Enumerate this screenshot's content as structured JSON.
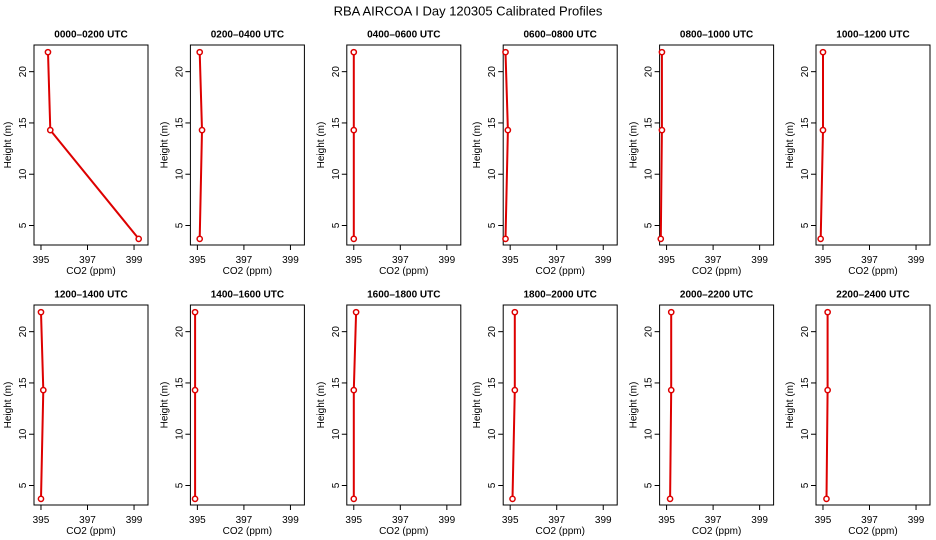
{
  "title": "RBA AIRCOA I  Day 120305  Calibrated Profiles",
  "chart_data": [
    {
      "type": "line",
      "title": "0000–0200 UTC",
      "xlabel": "CO2 (ppm)",
      "ylabel": "Height (m)",
      "x": [
        399.2,
        395.4,
        395.3
      ],
      "values": [
        3.7,
        14.3,
        21.9
      ],
      "color": "#dd0000",
      "xlim": [
        394.7,
        399.6
      ],
      "ylim": [
        3.1,
        22.6
      ],
      "xticks": [
        395,
        397,
        399
      ],
      "yticks": [
        5,
        10,
        15,
        20
      ]
    },
    {
      "type": "line",
      "title": "0200–0400 UTC",
      "xlabel": "CO2 (ppm)",
      "ylabel": "Height (m)",
      "x": [
        395.1,
        395.2,
        395.1
      ],
      "values": [
        3.7,
        14.3,
        21.9
      ],
      "color": "#dd0000",
      "xlim": [
        394.7,
        399.6
      ],
      "ylim": [
        3.1,
        22.6
      ],
      "xticks": [
        395,
        397,
        399
      ],
      "yticks": [
        5,
        10,
        15,
        20
      ]
    },
    {
      "type": "line",
      "title": "0400–0600 UTC",
      "xlabel": "CO2 (ppm)",
      "ylabel": "Height (m)",
      "x": [
        395.0,
        395.0,
        395.0
      ],
      "values": [
        3.7,
        14.3,
        21.9
      ],
      "color": "#dd0000",
      "xlim": [
        394.7,
        399.6
      ],
      "ylim": [
        3.1,
        22.6
      ],
      "xticks": [
        395,
        397,
        399
      ],
      "yticks": [
        5,
        10,
        15,
        20
      ]
    },
    {
      "type": "line",
      "title": "0600–0800 UTC",
      "xlabel": "CO2 (ppm)",
      "ylabel": "Height (m)",
      "x": [
        394.8,
        394.9,
        394.8
      ],
      "values": [
        3.7,
        14.3,
        21.9
      ],
      "color": "#dd0000",
      "xlim": [
        394.7,
        399.6
      ],
      "ylim": [
        3.1,
        22.6
      ],
      "xticks": [
        395,
        397,
        399
      ],
      "yticks": [
        5,
        10,
        15,
        20
      ]
    },
    {
      "type": "line",
      "title": "0800–1000 UTC",
      "xlabel": "CO2 (ppm)",
      "ylabel": "Height (m)",
      "x": [
        394.75,
        394.8,
        394.8
      ],
      "values": [
        3.7,
        14.3,
        21.9
      ],
      "color": "#dd0000",
      "xlim": [
        394.7,
        399.6
      ],
      "ylim": [
        3.1,
        22.6
      ],
      "xticks": [
        395,
        397,
        399
      ],
      "yticks": [
        5,
        10,
        15,
        20
      ]
    },
    {
      "type": "line",
      "title": "1000–1200 UTC",
      "xlabel": "CO2 (ppm)",
      "ylabel": "Height (m)",
      "x": [
        394.9,
        395.0,
        395.0
      ],
      "values": [
        3.7,
        14.3,
        21.9
      ],
      "color": "#dd0000",
      "xlim": [
        394.7,
        399.6
      ],
      "ylim": [
        3.1,
        22.6
      ],
      "xticks": [
        395,
        397,
        399
      ],
      "yticks": [
        5,
        10,
        15,
        20
      ]
    },
    {
      "type": "line",
      "title": "1200–1400 UTC",
      "xlabel": "CO2 (ppm)",
      "ylabel": "Height (m)",
      "x": [
        395.0,
        395.1,
        395.0
      ],
      "values": [
        3.7,
        14.3,
        21.9
      ],
      "color": "#dd0000",
      "xlim": [
        394.7,
        399.6
      ],
      "ylim": [
        3.1,
        22.6
      ],
      "xticks": [
        395,
        397,
        399
      ],
      "yticks": [
        5,
        10,
        15,
        20
      ]
    },
    {
      "type": "line",
      "title": "1400–1600 UTC",
      "xlabel": "CO2 (ppm)",
      "ylabel": "Height (m)",
      "x": [
        394.9,
        394.9,
        394.9
      ],
      "values": [
        3.7,
        14.3,
        21.9
      ],
      "color": "#dd0000",
      "xlim": [
        394.7,
        399.6
      ],
      "ylim": [
        3.1,
        22.6
      ],
      "xticks": [
        395,
        397,
        399
      ],
      "yticks": [
        5,
        10,
        15,
        20
      ]
    },
    {
      "type": "line",
      "title": "1600–1800 UTC",
      "xlabel": "CO2 (ppm)",
      "ylabel": "Height (m)",
      "x": [
        395.0,
        395.0,
        395.1
      ],
      "values": [
        3.7,
        14.3,
        21.9
      ],
      "color": "#dd0000",
      "xlim": [
        394.7,
        399.6
      ],
      "ylim": [
        3.1,
        22.6
      ],
      "xticks": [
        395,
        397,
        399
      ],
      "yticks": [
        5,
        10,
        15,
        20
      ]
    },
    {
      "type": "line",
      "title": "1800–2000 UTC",
      "xlabel": "CO2 (ppm)",
      "ylabel": "Height (m)",
      "x": [
        395.1,
        395.2,
        395.2
      ],
      "values": [
        3.7,
        14.3,
        21.9
      ],
      "color": "#dd0000",
      "xlim": [
        394.7,
        399.6
      ],
      "ylim": [
        3.1,
        22.6
      ],
      "xticks": [
        395,
        397,
        399
      ],
      "yticks": [
        5,
        10,
        15,
        20
      ]
    },
    {
      "type": "line",
      "title": "2000–2200 UTC",
      "xlabel": "CO2 (ppm)",
      "ylabel": "Height (m)",
      "x": [
        395.15,
        395.2,
        395.2
      ],
      "values": [
        3.7,
        14.3,
        21.9
      ],
      "color": "#dd0000",
      "xlim": [
        394.7,
        399.6
      ],
      "ylim": [
        3.1,
        22.6
      ],
      "xticks": [
        395,
        397,
        399
      ],
      "yticks": [
        5,
        10,
        15,
        20
      ]
    },
    {
      "type": "line",
      "title": "2200–2400 UTC",
      "xlabel": "CO2 (ppm)",
      "ylabel": "Height (m)",
      "x": [
        395.15,
        395.2,
        395.2
      ],
      "values": [
        3.7,
        14.3,
        21.9
      ],
      "color": "#dd0000",
      "xlim": [
        394.7,
        399.6
      ],
      "ylim": [
        3.1,
        22.6
      ],
      "xticks": [
        395,
        397,
        399
      ],
      "yticks": [
        5,
        10,
        15,
        20
      ]
    }
  ]
}
